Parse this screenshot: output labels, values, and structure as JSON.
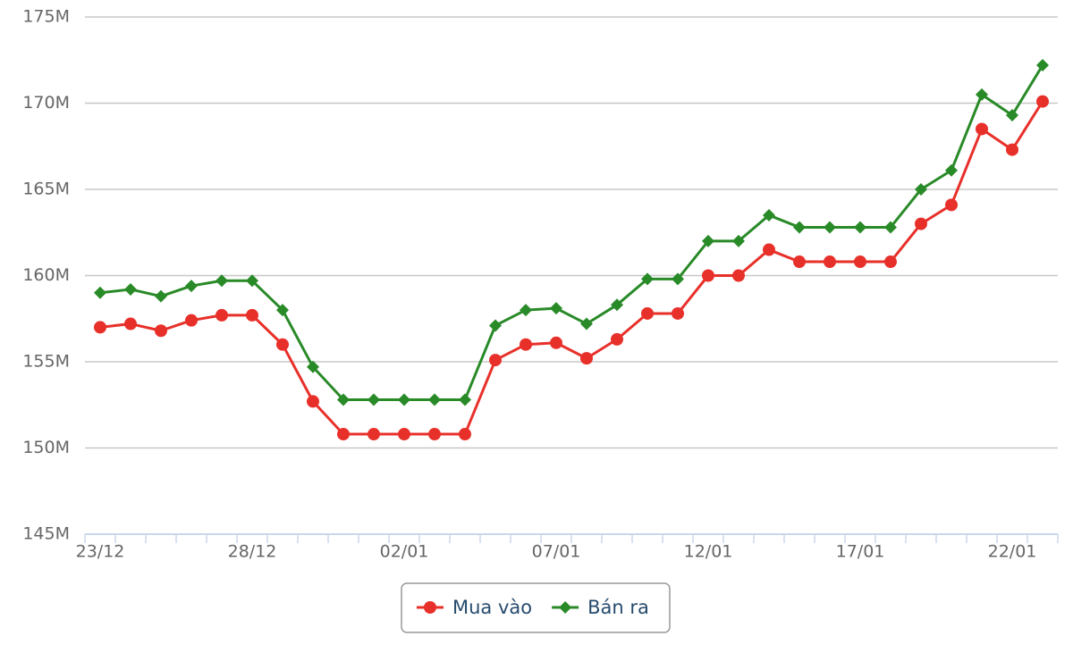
{
  "chart_data": {
    "type": "line",
    "categories": [
      "23/12",
      null,
      null,
      null,
      null,
      "28/12",
      null,
      null,
      null,
      null,
      "02/01",
      null,
      null,
      null,
      null,
      "07/01",
      null,
      null,
      null,
      null,
      "12/01",
      null,
      null,
      null,
      null,
      "17/01",
      null,
      null,
      null,
      null,
      "22/01",
      null
    ],
    "series": [
      {
        "name": "Mua vào",
        "color": "#e8302a",
        "marker": "circle",
        "values": [
          157000000,
          157200000,
          156800000,
          157400000,
          157700000,
          157700000,
          156000000,
          152700000,
          150800000,
          150800000,
          150800000,
          150800000,
          150800000,
          155100000,
          156000000,
          156100000,
          155200000,
          156300000,
          157800000,
          157800000,
          160000000,
          160000000,
          161500000,
          160800000,
          160800000,
          160800000,
          160800000,
          163000000,
          164100000,
          168500000,
          167300000,
          170100000
        ]
      },
      {
        "name": "Bán ra",
        "color": "#298a28",
        "marker": "diamond",
        "values": [
          159000000,
          159200000,
          158800000,
          159400000,
          159700000,
          159700000,
          158000000,
          154700000,
          152800000,
          152800000,
          152800000,
          152800000,
          152800000,
          157100000,
          158000000,
          158100000,
          157200000,
          158300000,
          159800000,
          159800000,
          162000000,
          162000000,
          163500000,
          162800000,
          162800000,
          162800000,
          162800000,
          165000000,
          166100000,
          170500000,
          169300000,
          172200000
        ]
      }
    ],
    "ylim": [
      145000000,
      175000000
    ],
    "yticks": [
      {
        "value": 145000000,
        "label": "145M"
      },
      {
        "value": 150000000,
        "label": "150M"
      },
      {
        "value": 155000000,
        "label": "155M"
      },
      {
        "value": 160000000,
        "label": "160M"
      },
      {
        "value": 165000000,
        "label": "165M"
      },
      {
        "value": 170000000,
        "label": "170M"
      },
      {
        "value": 175000000,
        "label": "175M"
      }
    ],
    "grid": true,
    "legend": "bottom"
  }
}
